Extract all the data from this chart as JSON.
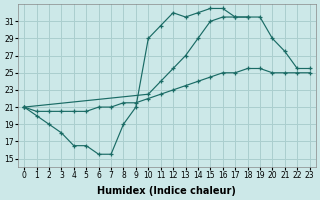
{
  "xlabel": "Humidex (Indice chaleur)",
  "bg_color": "#cce8e8",
  "grid_color": "#aacece",
  "line_color": "#1a6b65",
  "xlim": [
    -0.5,
    23.5
  ],
  "ylim": [
    14.0,
    33.0
  ],
  "xticks": [
    0,
    1,
    2,
    3,
    4,
    5,
    6,
    7,
    8,
    9,
    10,
    11,
    12,
    13,
    14,
    15,
    16,
    17,
    18,
    19,
    20,
    21,
    22,
    23
  ],
  "yticks": [
    15,
    17,
    19,
    21,
    23,
    25,
    27,
    29,
    31
  ],
  "curve1_x": [
    0,
    1,
    2,
    3,
    4,
    5,
    6,
    7,
    8,
    9,
    10,
    11,
    12,
    13,
    14,
    15,
    16,
    17,
    18
  ],
  "curve1_y": [
    21,
    20,
    19,
    18,
    16.5,
    16.5,
    15.5,
    15.5,
    19.0,
    21.0,
    29.0,
    30.5,
    32.0,
    31.5,
    32.0,
    32.5,
    32.5,
    31.5,
    31.5
  ],
  "curve2_x": [
    0,
    10,
    11,
    12,
    13,
    14,
    15,
    16,
    17,
    18,
    19,
    20,
    21,
    22,
    23
  ],
  "curve2_y": [
    21,
    22.5,
    24.0,
    25.5,
    27.0,
    29.0,
    31.0,
    31.5,
    31.5,
    31.5,
    31.5,
    29.0,
    27.5,
    25.5,
    25.5
  ],
  "curve3_x": [
    0,
    1,
    2,
    3,
    4,
    5,
    6,
    7,
    8,
    9,
    10,
    11,
    12,
    13,
    14,
    15,
    16,
    17,
    18,
    19,
    20,
    21,
    22,
    23
  ],
  "curve3_y": [
    21,
    20.5,
    20.5,
    20.5,
    20.5,
    20.5,
    21.0,
    21.0,
    21.5,
    21.5,
    22.0,
    22.5,
    23.0,
    23.5,
    24.0,
    24.5,
    25.0,
    25.0,
    25.5,
    25.5,
    25.0,
    25.0,
    25.0,
    25.0
  ]
}
